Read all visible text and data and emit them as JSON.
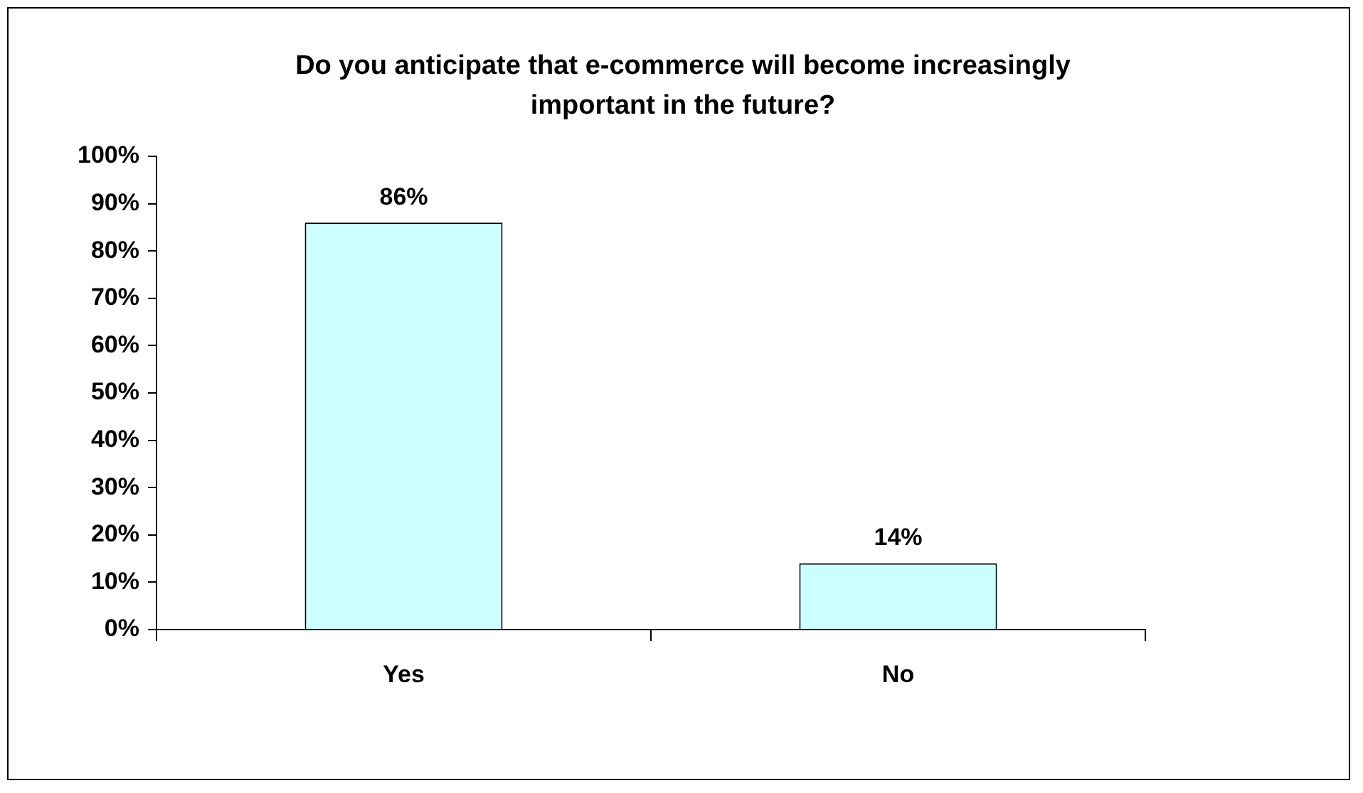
{
  "chart_data": {
    "type": "bar",
    "title": "Do you anticipate that e-commerce will become increasingly important in the future?",
    "categories": [
      "Yes",
      "No"
    ],
    "values": [
      86,
      14
    ],
    "value_labels": [
      "86%",
      "14%"
    ],
    "color": "#ccffff",
    "ylim": [
      0,
      100
    ],
    "yticks": [
      {
        "value": 0,
        "label": "0%"
      },
      {
        "value": 10,
        "label": "10%"
      },
      {
        "value": 20,
        "label": "20%"
      },
      {
        "value": 30,
        "label": "30%"
      },
      {
        "value": 40,
        "label": "40%"
      },
      {
        "value": 50,
        "label": "50%"
      },
      {
        "value": 60,
        "label": "60%"
      },
      {
        "value": 70,
        "label": "70%"
      },
      {
        "value": 80,
        "label": "80%"
      },
      {
        "value": 90,
        "label": "90%"
      },
      {
        "value": 100,
        "label": "100%"
      }
    ],
    "grid": false,
    "legend": false
  }
}
